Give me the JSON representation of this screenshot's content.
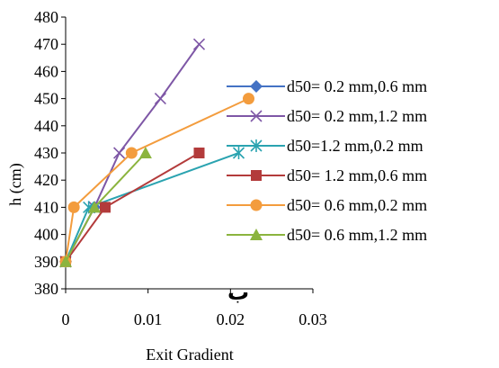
{
  "chart_data": {
    "type": "line",
    "title": "",
    "xlabel": "Exit Gradient",
    "ylabel": "h (cm)",
    "xlim": [
      0,
      0.03
    ],
    "ylim": [
      380,
      480
    ],
    "x_ticks": [
      "0",
      "0.01",
      "0.02",
      "0.03"
    ],
    "y_ticks": [
      "380",
      "390",
      "400",
      "410",
      "420",
      "430",
      "440",
      "450",
      "460",
      "470",
      "480"
    ],
    "grid": false,
    "legend_position": "right",
    "annotation": "ب",
    "series": [
      {
        "name": "d50= 0.2 mm,0.6 mm",
        "color": "#4472C4",
        "marker": "diamond",
        "x": [
          0,
          0.0035
        ],
        "y": [
          390,
          410
        ]
      },
      {
        "name": "d50= 0.2 mm,1.2 mm",
        "color": "#7E57A6",
        "marker": "x",
        "x": [
          0,
          0.0035,
          0.0065,
          0.0115,
          0.0162
        ],
        "y": [
          390,
          410,
          430,
          450,
          470
        ]
      },
      {
        "name": "d50=1.2 mm,0.2 mm",
        "color": "#2AA3B0",
        "marker": "asterisk",
        "x": [
          0,
          0.0028,
          0.021
        ],
        "y": [
          390,
          410,
          430
        ]
      },
      {
        "name": "d50= 1.2 mm,0.6 mm",
        "color": "#B33B3B",
        "marker": "square",
        "x": [
          0,
          0.0048,
          0.0162
        ],
        "y": [
          390,
          410,
          430
        ]
      },
      {
        "name": "d50= 0.6 mm,0.2 mm",
        "color": "#F39C3D",
        "marker": "circle",
        "x": [
          0,
          0.001,
          0.008,
          0.0222
        ],
        "y": [
          390,
          410,
          430,
          450
        ]
      },
      {
        "name": "d50= 0.6 mm,1.2 mm",
        "color": "#8BB43E",
        "marker": "triangle",
        "x": [
          0,
          0.0035,
          0.0097
        ],
        "y": [
          390,
          410,
          430
        ]
      }
    ]
  }
}
